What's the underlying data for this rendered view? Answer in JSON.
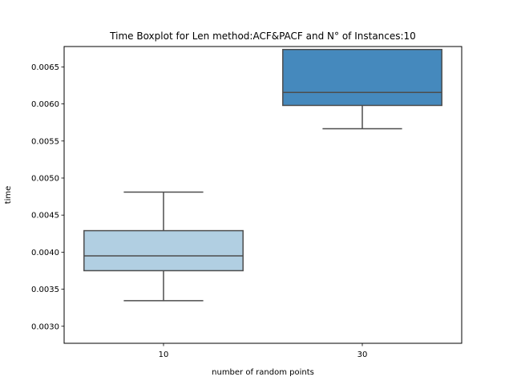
{
  "chart_data": {
    "type": "box",
    "title": "Time Boxplot for Len method:ACF&PACF and N° of Instances:10",
    "xlabel": "number of random points",
    "ylabel": "time",
    "categories": [
      "10",
      "30"
    ],
    "ylim": [
      0.00277,
      0.006775
    ],
    "yticks": [
      0.003,
      0.0035,
      0.004,
      0.0045,
      0.005,
      0.0055,
      0.006,
      0.0065
    ],
    "ytick_labels": [
      "0.0030",
      "0.0035",
      "0.0040",
      "0.0045",
      "0.0050",
      "0.0055",
      "0.0060",
      "0.0065"
    ],
    "boxes": [
      {
        "category": "10",
        "whisker_low": 0.003345,
        "q1": 0.00375,
        "median": 0.00395,
        "q3": 0.00429,
        "whisker_high": 0.00481,
        "color": "#b1cfe2"
      },
      {
        "category": "30",
        "whisker_low": 0.005665,
        "q1": 0.00598,
        "median": 0.006155,
        "q3": 0.006735,
        "whisker_high": 0.006735,
        "color": "#4589bd"
      }
    ],
    "grid": false,
    "line_color": "#4d4d4d"
  }
}
